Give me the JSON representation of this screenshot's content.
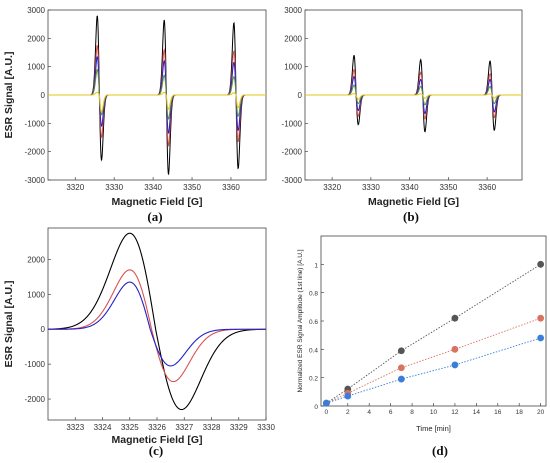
{
  "chart_data": [
    {
      "id": "a",
      "panel_label": "(a)",
      "type": "line",
      "xlabel": "Magnetic Field [G]",
      "ylabel": "ESR Signal [A.U.]",
      "xlim": [
        3313,
        3369
      ],
      "ylim": [
        -3000,
        3000
      ],
      "xticks": [
        3320,
        3330,
        3340,
        3350,
        3360
      ],
      "yticks": [
        -3000,
        -2000,
        -1000,
        0,
        1000,
        2000,
        3000
      ],
      "tick_side": "left",
      "peak_centers": [
        3325.9,
        3343.1,
        3361.0
      ],
      "series": [
        {
          "color": "#000000",
          "amps": [
            2800,
            2650,
            2550
          ],
          "neg": [
            2300,
            2800,
            2600
          ]
        },
        {
          "color": "#d9534f",
          "amps": [
            1750,
            1600,
            1550
          ],
          "neg": [
            1500,
            1800,
            1650
          ]
        },
        {
          "color": "#2222cc",
          "amps": [
            1350,
            1200,
            1150
          ],
          "neg": [
            1100,
            1350,
            1250
          ]
        },
        {
          "color": "#5b8f3a",
          "amps": [
            900,
            700,
            650
          ],
          "neg": [
            700,
            850,
            750
          ]
        },
        {
          "color": "#e6c619",
          "amps": [
            100,
            90,
            80
          ],
          "neg": [
            600,
            500,
            450
          ]
        }
      ]
    },
    {
      "id": "b",
      "panel_label": "(b)",
      "type": "line",
      "xlabel": "Magnetic Field [G]",
      "ylabel": "",
      "xlim": [
        3313,
        3369
      ],
      "ylim": [
        -3000,
        3000
      ],
      "xticks": [
        3320,
        3330,
        3340,
        3350,
        3360
      ],
      "yticks": [
        -3000,
        -2000,
        -1000,
        0,
        1000,
        2000,
        3000
      ],
      "tick_side": "left",
      "peak_centers": [
        3325.9,
        3343.1,
        3361.0
      ],
      "series": [
        {
          "color": "#000000",
          "amps": [
            1400,
            1250,
            1200
          ],
          "neg": [
            1050,
            1300,
            1250
          ]
        },
        {
          "color": "#d9534f",
          "amps": [
            900,
            800,
            750
          ],
          "neg": [
            750,
            850,
            800
          ]
        },
        {
          "color": "#2222cc",
          "amps": [
            650,
            550,
            550
          ],
          "neg": [
            550,
            650,
            600
          ]
        },
        {
          "color": "#5b8f3a",
          "amps": [
            350,
            300,
            300
          ],
          "neg": [
            300,
            350,
            300
          ]
        },
        {
          "color": "#e6c619",
          "amps": [
            50,
            40,
            40
          ],
          "neg": [
            150,
            120,
            110
          ]
        }
      ]
    },
    {
      "id": "c",
      "panel_label": "(c)",
      "type": "line",
      "xlabel": "Magnetic Field [G]",
      "ylabel": "ESR Signal [A.U.]",
      "xlim": [
        3322,
        3330
      ],
      "ylim": [
        -2600,
        2900
      ],
      "xticks": [
        3323,
        3324,
        3325,
        3326,
        3327,
        3328,
        3329,
        3330
      ],
      "yticks": [
        -2000,
        -1000,
        0,
        1000,
        2000
      ],
      "tick_side": "left",
      "series": [
        {
          "color": "#000000",
          "amp": 2750,
          "neg": 2300,
          "pos_center": 3325.0,
          "neg_center": 3326.9
        },
        {
          "color": "#d9534f",
          "amp": 1700,
          "neg": 1500,
          "pos_center": 3325.0,
          "neg_center": 3326.6
        },
        {
          "color": "#2222cc",
          "amp": 1350,
          "neg": 1050,
          "pos_center": 3325.0,
          "neg_center": 3326.5
        }
      ]
    },
    {
      "id": "d",
      "panel_label": "(d)",
      "type": "scatter",
      "xlabel": "Time [min]",
      "ylabel": "Normalized ESR Signal Amplitude (1st line) [A.U.]",
      "xlim": [
        -0.5,
        20.5
      ],
      "ylim": [
        0,
        1.2
      ],
      "xticks": [
        0,
        2,
        4,
        6,
        8,
        10,
        12,
        14,
        16,
        18,
        20
      ],
      "yticks": [
        0,
        0.2,
        0.4,
        0.6,
        0.8,
        1
      ],
      "ytick_labels": [
        "0",
        "0.2",
        "0.4",
        "0.6",
        "0.8",
        "1"
      ],
      "series": [
        {
          "color": "#555555",
          "x": [
            0,
            2,
            7,
            12,
            20
          ],
          "y": [
            0.02,
            0.12,
            0.39,
            0.62,
            1.0
          ]
        },
        {
          "color": "#d9735f",
          "x": [
            0,
            2,
            7,
            12,
            20
          ],
          "y": [
            0.02,
            0.09,
            0.27,
            0.4,
            0.62
          ]
        },
        {
          "color": "#3b7ed9",
          "x": [
            0,
            2,
            7,
            12,
            20
          ],
          "y": [
            0.02,
            0.07,
            0.19,
            0.29,
            0.48
          ]
        }
      ]
    }
  ]
}
